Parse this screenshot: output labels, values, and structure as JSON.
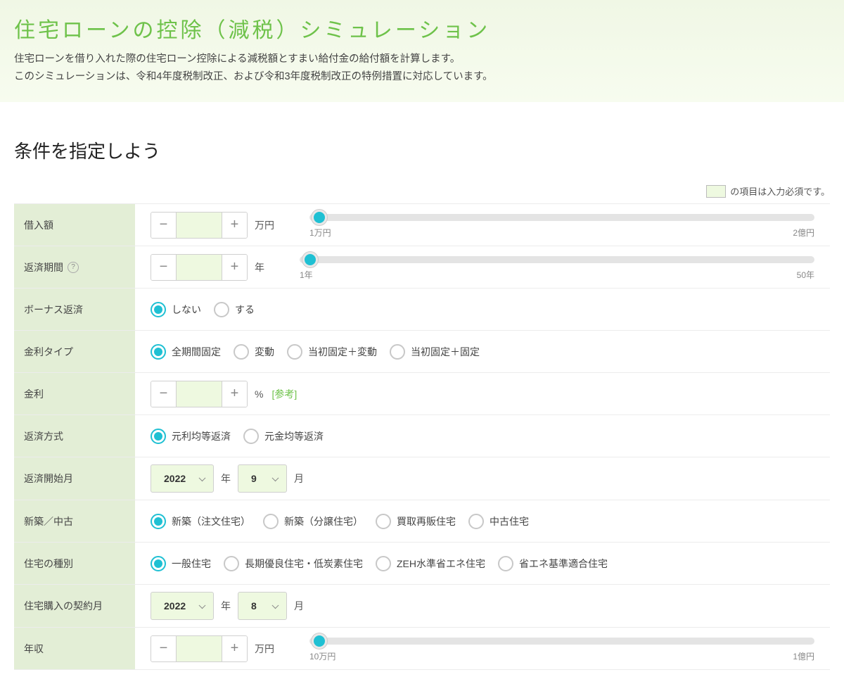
{
  "header": {
    "title": "住宅ローンの控除（減税）シミュレーション",
    "desc1": "住宅ローンを借り入れた際の住宅ローン控除による減税額とすまい給付金の給付額を計算します。",
    "desc2": "このシミュレーションは、令和4年度税制改正、および令和3年度税制改正の特例措置に対応しています。"
  },
  "section_title": "条件を指定しよう",
  "required_note": "の項目は入力必須です。",
  "colors": {
    "accent": "#1fc0d3",
    "required_bg": "#eef9e0",
    "label_bg": "#e3eed6",
    "title_color": "#6ec24a"
  },
  "rows": {
    "loan_amount": {
      "label": "借入額",
      "unit": "万円",
      "slider": {
        "min_label": "1万円",
        "max_label": "2億円",
        "pos_pct": 2
      }
    },
    "loan_period": {
      "label": "返済期間",
      "has_help": true,
      "unit": "年",
      "slider": {
        "min_label": "1年",
        "max_label": "50年",
        "pos_pct": 2
      }
    },
    "bonus": {
      "label": "ボーナス返済",
      "options": [
        "しない",
        "する"
      ],
      "selected": 0
    },
    "rate_type": {
      "label": "金利タイプ",
      "options": [
        "全期間固定",
        "変動",
        "当初固定＋変動",
        "当初固定＋固定"
      ],
      "selected": 0
    },
    "rate": {
      "label": "金利",
      "unit": "%",
      "ref": "[参考]"
    },
    "repay_method": {
      "label": "返済方式",
      "options": [
        "元利均等返済",
        "元金均等返済"
      ],
      "selected": 0
    },
    "start_month": {
      "label": "返済開始月",
      "year": "2022",
      "year_unit": "年",
      "month": "9",
      "month_unit": "月"
    },
    "new_used": {
      "label": "新築／中古",
      "options": [
        "新築（注文住宅）",
        "新築（分譲住宅）",
        "買取再販住宅",
        "中古住宅"
      ],
      "selected": 0
    },
    "house_type": {
      "label": "住宅の種別",
      "options": [
        "一般住宅",
        "長期優良住宅・低炭素住宅",
        "ZEH水準省エネ住宅",
        "省エネ基準適合住宅"
      ],
      "selected": 0
    },
    "contract_month": {
      "label": "住宅購入の契約月",
      "year": "2022",
      "year_unit": "年",
      "month": "8",
      "month_unit": "月"
    },
    "income": {
      "label": "年収",
      "unit": "万円",
      "slider": {
        "min_label": "10万円",
        "max_label": "1億円",
        "pos_pct": 2
      }
    }
  }
}
